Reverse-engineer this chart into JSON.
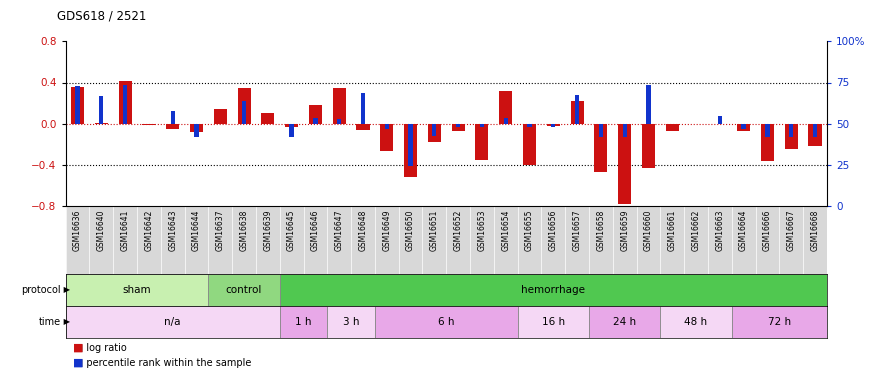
{
  "title": "GDS618 / 2521",
  "samples": [
    "GSM16636",
    "GSM16640",
    "GSM16641",
    "GSM16642",
    "GSM16643",
    "GSM16644",
    "GSM16637",
    "GSM16638",
    "GSM16639",
    "GSM16645",
    "GSM16646",
    "GSM16647",
    "GSM16648",
    "GSM16649",
    "GSM16650",
    "GSM16651",
    "GSM16652",
    "GSM16653",
    "GSM16654",
    "GSM16655",
    "GSM16656",
    "GSM16657",
    "GSM16658",
    "GSM16659",
    "GSM16660",
    "GSM16661",
    "GSM16662",
    "GSM16663",
    "GSM16664",
    "GSM16666",
    "GSM16667",
    "GSM16668"
  ],
  "log_ratio": [
    0.36,
    0.01,
    0.41,
    -0.01,
    -0.05,
    -0.08,
    0.14,
    0.35,
    0.1,
    -0.03,
    0.18,
    0.35,
    -0.06,
    -0.26,
    -0.52,
    -0.18,
    -0.07,
    -0.35,
    0.32,
    -0.4,
    -0.02,
    0.22,
    -0.47,
    -0.78,
    -0.43,
    -0.07,
    0.0,
    0.0,
    -0.07,
    -0.36,
    -0.24,
    -0.22
  ],
  "percentile_offset": [
    0.37,
    0.27,
    0.38,
    0.0,
    0.12,
    -0.13,
    0.0,
    0.22,
    0.0,
    -0.13,
    0.06,
    0.05,
    0.3,
    -0.05,
    -0.41,
    -0.12,
    -0.03,
    -0.03,
    0.06,
    -0.03,
    -0.03,
    0.28,
    -0.13,
    -0.13,
    0.38,
    0.0,
    0.0,
    0.08,
    -0.05,
    -0.13,
    -0.13,
    -0.13
  ],
  "protocol_groups": [
    {
      "label": "sham",
      "start": 0,
      "end": 6,
      "color": "#c8f0b0"
    },
    {
      "label": "control",
      "start": 6,
      "end": 9,
      "color": "#90d880"
    },
    {
      "label": "hemorrhage",
      "start": 9,
      "end": 32,
      "color": "#50c850"
    }
  ],
  "time_groups": [
    {
      "label": "n/a",
      "start": 0,
      "end": 9,
      "color": "#f5d8f5"
    },
    {
      "label": "1 h",
      "start": 9,
      "end": 11,
      "color": "#e8a8e8"
    },
    {
      "label": "3 h",
      "start": 11,
      "end": 13,
      "color": "#f5d8f5"
    },
    {
      "label": "6 h",
      "start": 13,
      "end": 19,
      "color": "#e8a8e8"
    },
    {
      "label": "16 h",
      "start": 19,
      "end": 22,
      "color": "#f5d8f5"
    },
    {
      "label": "24 h",
      "start": 22,
      "end": 25,
      "color": "#e8a8e8"
    },
    {
      "label": "48 h",
      "start": 25,
      "end": 28,
      "color": "#f5d8f5"
    },
    {
      "label": "72 h",
      "start": 28,
      "end": 32,
      "color": "#e8a8e8"
    }
  ],
  "ylim": [
    -0.8,
    0.8
  ],
  "yticks_left": [
    -0.8,
    -0.4,
    0.0,
    0.4,
    0.8
  ],
  "yticks_right": [
    -0.8,
    -0.4,
    0.0,
    0.4,
    0.8
  ],
  "ytick_labels_right": [
    "0",
    "25",
    "50",
    "75",
    "100%"
  ],
  "bar_color_red": "#cc1111",
  "bar_color_blue": "#1133cc",
  "xlabel_bg": "#d8d8d8",
  "plot_bg": "#ffffff"
}
